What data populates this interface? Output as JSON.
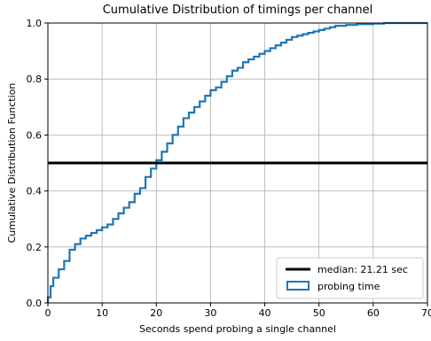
{
  "chart_data": {
    "type": "line",
    "title": "Cumulative Distribution of timings per channel",
    "xlabel": "Seconds spend probing a single channel",
    "ylabel": "Cumulative Distribution Function",
    "xlim": [
      0,
      70
    ],
    "ylim": [
      0.0,
      1.0
    ],
    "x_ticks": [
      0,
      10,
      20,
      30,
      40,
      50,
      60,
      70
    ],
    "x_tick_labels": [
      "0",
      "10",
      "20",
      "30",
      "40",
      "50",
      "60",
      "70"
    ],
    "y_ticks": [
      0.0,
      0.2,
      0.4,
      0.6,
      0.8,
      1.0
    ],
    "y_tick_labels": [
      "0.0",
      "0.2",
      "0.4",
      "0.6",
      "0.8",
      "1.0"
    ],
    "grid": true,
    "legend_position": "lower-right",
    "series": [
      {
        "name": "probing time",
        "style": "step",
        "color": "#1f77b4",
        "x": [
          0.0,
          0.5,
          1.0,
          2.0,
          3.0,
          4.0,
          5.0,
          6.0,
          7.0,
          8.0,
          9.0,
          10.0,
          11.0,
          12.0,
          13.0,
          14.0,
          15.0,
          16.0,
          17.0,
          18.0,
          19.0,
          20.0,
          21.0,
          22.0,
          23.0,
          24.0,
          25.0,
          26.0,
          27.0,
          28.0,
          29.0,
          30.0,
          31.0,
          32.0,
          33.0,
          34.0,
          35.0,
          36.0,
          37.0,
          38.0,
          39.0,
          40.0,
          41.0,
          42.0,
          43.0,
          44.0,
          45.0,
          46.0,
          47.0,
          48.0,
          49.0,
          50.0,
          51.0,
          52.0,
          53.0,
          55.0,
          57.0,
          60.0,
          62.0,
          70.0
        ],
        "y": [
          0.02,
          0.06,
          0.09,
          0.12,
          0.15,
          0.19,
          0.21,
          0.23,
          0.24,
          0.25,
          0.26,
          0.27,
          0.28,
          0.3,
          0.32,
          0.34,
          0.36,
          0.39,
          0.41,
          0.45,
          0.48,
          0.51,
          0.54,
          0.57,
          0.6,
          0.63,
          0.66,
          0.68,
          0.7,
          0.72,
          0.74,
          0.76,
          0.77,
          0.79,
          0.81,
          0.83,
          0.84,
          0.86,
          0.87,
          0.88,
          0.89,
          0.9,
          0.91,
          0.92,
          0.93,
          0.94,
          0.95,
          0.955,
          0.96,
          0.965,
          0.97,
          0.975,
          0.98,
          0.985,
          0.99,
          0.993,
          0.996,
          0.998,
          1.0,
          1.0
        ]
      },
      {
        "name": "median: 21.21 sec",
        "style": "hline",
        "color": "#000000",
        "y": 0.5
      }
    ]
  }
}
